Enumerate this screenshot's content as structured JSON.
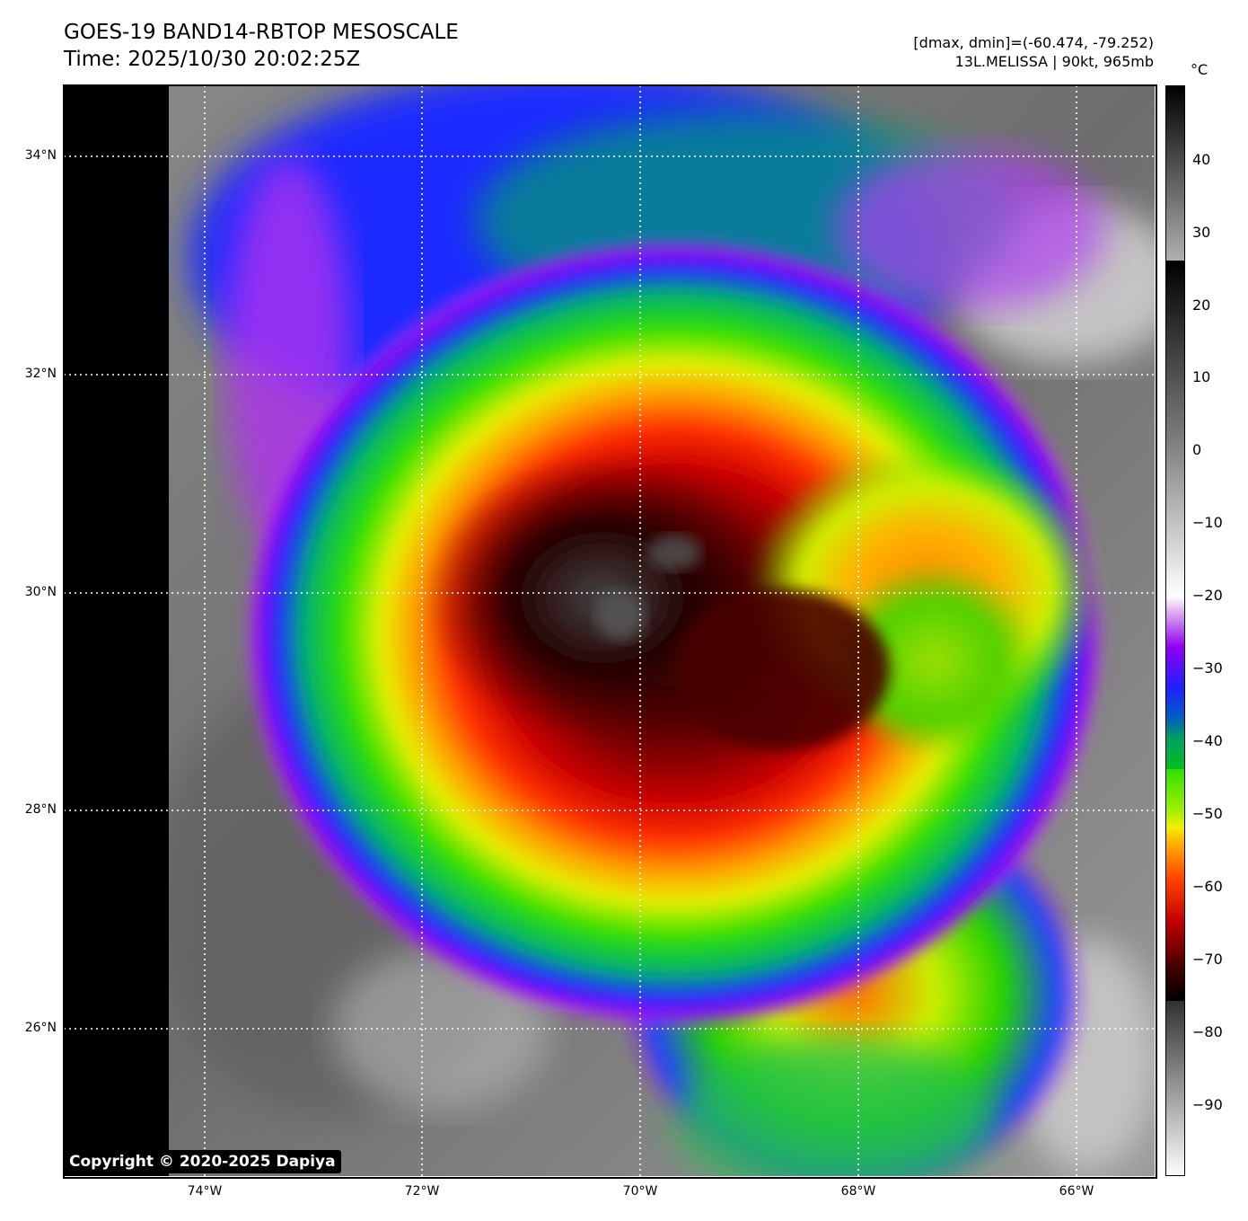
{
  "title": {
    "line1": "GOES-19 BAND14-RBTOP MESOSCALE",
    "line2": "Time: 2025/10/30 20:02:25Z"
  },
  "info": {
    "range": "[dmax, dmin]=(-60.474, -79.252)",
    "storm": "13L.MELISSA | 90kt, 965mb"
  },
  "map": {
    "lat_labels": [
      "34°N",
      "32°N",
      "30°N",
      "28°N",
      "26°N"
    ],
    "lat_values": [
      34,
      32,
      30,
      28,
      26
    ],
    "lon_labels": [
      "74°W",
      "72°W",
      "70°W",
      "68°W",
      "66°W"
    ],
    "lon_values": [
      -74,
      -72,
      -70,
      -68,
      -66
    ],
    "extent": {
      "lon_min": -75.28,
      "lon_max": -65.28,
      "lat_min": 24.64,
      "lat_max": 34.64
    },
    "storm_center": {
      "lon": -70.1,
      "lat": 29.8
    },
    "copyright": "Copyright © 2020-2025 Dapiya"
  },
  "colorbar": {
    "unit": "°C",
    "tick_labels": [
      "40",
      "30",
      "20",
      "10",
      "0",
      "−10",
      "−20",
      "−30",
      "−40",
      "−50",
      "−60",
      "−70",
      "−80",
      "−90"
    ],
    "tick_values": [
      40,
      30,
      20,
      10,
      0,
      -10,
      -20,
      -30,
      -40,
      -50,
      -60,
      -70,
      -80,
      -90
    ],
    "range": [
      -100,
      50
    ]
  }
}
